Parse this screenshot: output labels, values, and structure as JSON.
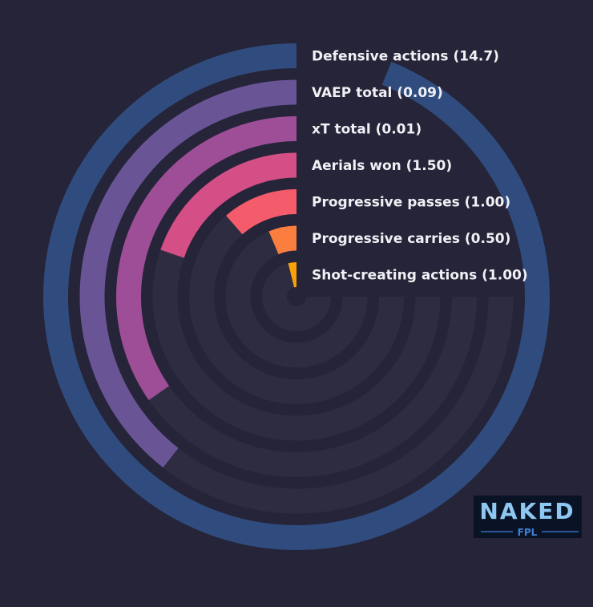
{
  "chart_data": {
    "type": "radial-bar",
    "title": "",
    "series": [
      {
        "label": "Defensive actions (14.7)",
        "value": 14.7,
        "sweep_deg": 338,
        "color": "#304c7e"
      },
      {
        "label": "VAEP total (0.09)",
        "value": 0.09,
        "sweep_deg": 142,
        "color": "#695596"
      },
      {
        "label": "xT total (0.01)",
        "value": 0.01,
        "sweep_deg": 125,
        "color": "#9e4e97"
      },
      {
        "label": "Aerials won (1.50)",
        "value": 1.5,
        "sweep_deg": 71,
        "color": "#d44f85"
      },
      {
        "label": "Progressive passes (1.00)",
        "value": 1.0,
        "sweep_deg": 41,
        "color": "#f45c6c"
      },
      {
        "label": "Progressive carries (0.50)",
        "value": 0.5,
        "sweep_deg": 23,
        "color": "#fb7e3f"
      },
      {
        "label": "Shot-creating actions (1.00)",
        "value": 1.0,
        "sweep_deg": 14,
        "color": "#f9a109"
      }
    ],
    "track_color": "#2d2c40",
    "background": "#252438",
    "grid": false,
    "legend": "none"
  },
  "logo": {
    "word": "NAKED",
    "sub": "FPL",
    "colors": {
      "bg": "#0a1326",
      "accent": "#8ec8f2",
      "sub": "#3e7fd6"
    }
  }
}
